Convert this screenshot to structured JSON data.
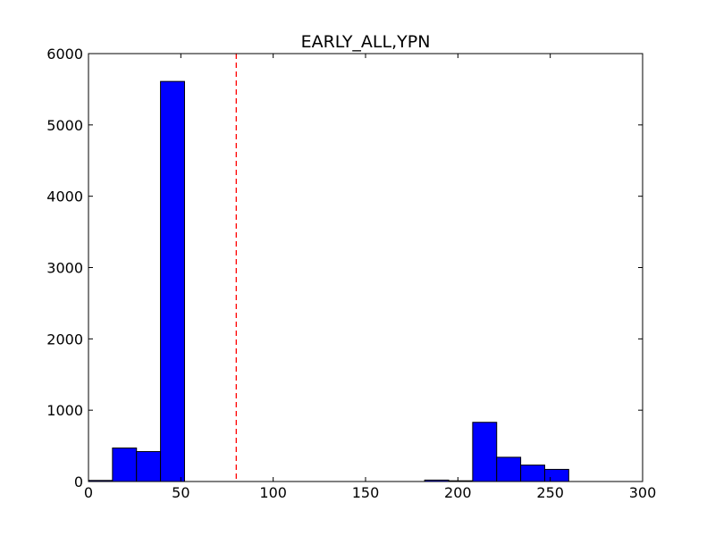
{
  "chart_data": {
    "type": "bar",
    "title": "EARLY_ALL,YPN",
    "xlabel": "",
    "ylabel": "",
    "xlim": [
      0,
      300
    ],
    "ylim": [
      0,
      6000
    ],
    "xticks": [
      0,
      50,
      100,
      150,
      200,
      250,
      300
    ],
    "yticks": [
      0,
      1000,
      2000,
      3000,
      4000,
      5000,
      6000
    ],
    "bar_color": "#0000ff",
    "bins": [
      {
        "x0": 0,
        "x1": 13,
        "value": 15
      },
      {
        "x0": 13,
        "x1": 26,
        "value": 470
      },
      {
        "x0": 26,
        "x1": 39,
        "value": 420
      },
      {
        "x0": 39,
        "x1": 52,
        "value": 5610
      },
      {
        "x0": 182,
        "x1": 195,
        "value": 20
      },
      {
        "x0": 195,
        "x1": 208,
        "value": 10
      },
      {
        "x0": 208,
        "x1": 221,
        "value": 830
      },
      {
        "x0": 221,
        "x1": 234,
        "value": 340
      },
      {
        "x0": 234,
        "x1": 247,
        "value": 230
      },
      {
        "x0": 247,
        "x1": 260,
        "value": 170
      }
    ],
    "threshold_line": {
      "x": 80,
      "color": "#ff0000",
      "style": "dashed"
    },
    "grid": false,
    "legend": "none"
  }
}
